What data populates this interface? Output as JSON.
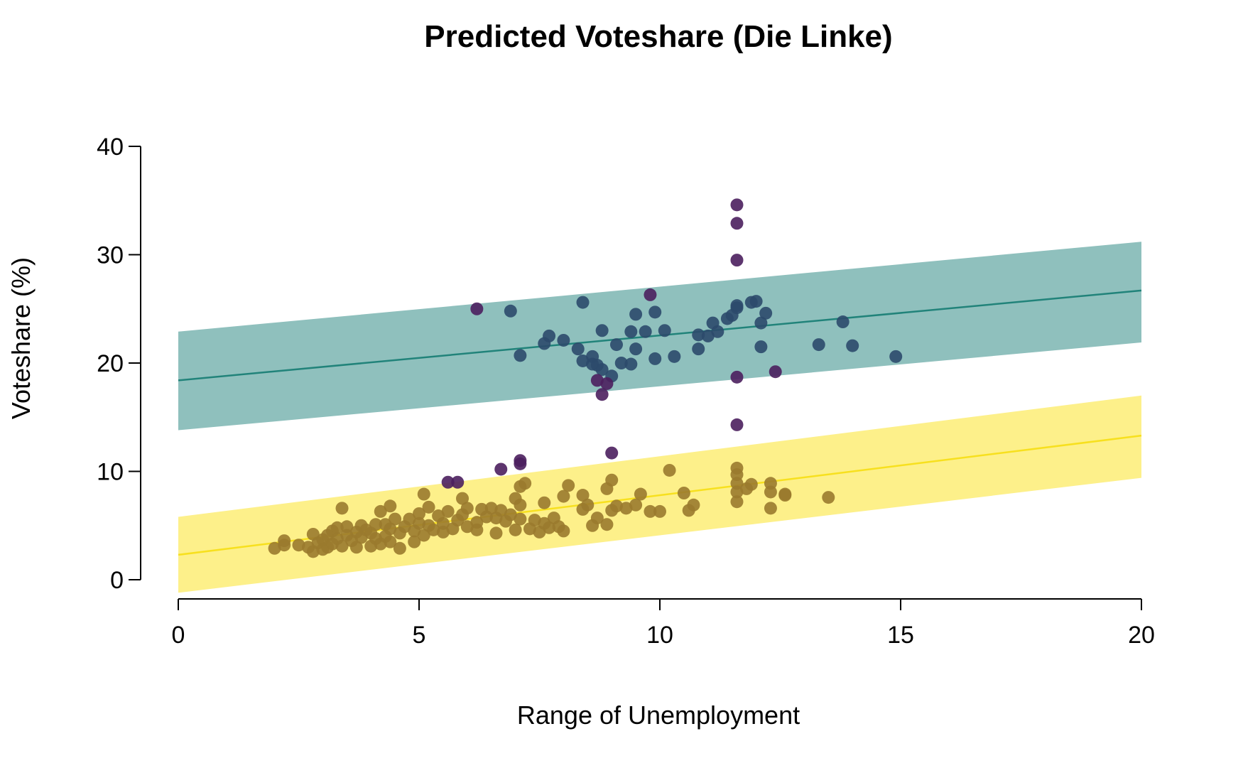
{
  "chart_data": {
    "type": "scatter",
    "title": "Predicted Voteshare (Die Linke)",
    "xlabel": "Range of Unemployment",
    "ylabel": "Voteshare (%)",
    "xlim": [
      0,
      20
    ],
    "ylim": [
      0,
      40
    ],
    "x_ticks": [
      0,
      5,
      10,
      15,
      20
    ],
    "y_ticks": [
      0,
      10,
      20,
      30,
      40
    ],
    "grid": false,
    "legend": "none",
    "colors": {
      "east_band": "#8fc0bd",
      "east_line": "#21837a",
      "west_band": "#fdf08a",
      "west_line": "#f7e01e",
      "east_points": "#2c4a6b",
      "west_points": "#9a7a2e",
      "outlier_points": "#4b1f5e"
    },
    "bands": [
      {
        "fit_x": [
          0,
          20
        ],
        "fit_y": [
          18.4,
          26.7
        ],
        "lower_y": [
          13.8,
          21.9
        ],
        "upper_y": [
          22.9,
          31.2
        ]
      },
      {
        "fit_x": [
          0,
          20
        ],
        "fit_y": [
          2.3,
          13.3
        ],
        "lower_y": [
          -1.2,
          9.4
        ],
        "upper_y": [
          5.8,
          17.0
        ]
      }
    ],
    "series": [
      {
        "points": [
          [
            8.4,
            25.6
          ],
          [
            6.9,
            24.8
          ],
          [
            7.1,
            20.7
          ],
          [
            7.6,
            21.8
          ],
          [
            7.7,
            22.5
          ],
          [
            8.0,
            22.1
          ],
          [
            8.3,
            21.3
          ],
          [
            8.4,
            20.2
          ],
          [
            8.6,
            20.6
          ],
          [
            8.6,
            19.9
          ],
          [
            8.7,
            19.8
          ],
          [
            8.8,
            23.0
          ],
          [
            8.8,
            19.4
          ],
          [
            9.0,
            18.8
          ],
          [
            9.1,
            21.7
          ],
          [
            9.2,
            20.0
          ],
          [
            9.4,
            19.9
          ],
          [
            9.4,
            22.9
          ],
          [
            9.5,
            21.3
          ],
          [
            9.5,
            24.5
          ],
          [
            9.7,
            22.9
          ],
          [
            9.9,
            24.7
          ],
          [
            9.9,
            20.4
          ],
          [
            10.1,
            23.0
          ],
          [
            10.3,
            20.6
          ],
          [
            10.8,
            22.6
          ],
          [
            10.8,
            21.3
          ],
          [
            11.0,
            22.5
          ],
          [
            11.1,
            23.7
          ],
          [
            11.2,
            22.9
          ],
          [
            11.4,
            24.1
          ],
          [
            11.5,
            24.4
          ],
          [
            11.6,
            25.1
          ],
          [
            11.6,
            25.3
          ],
          [
            11.9,
            25.6
          ],
          [
            12.0,
            25.7
          ],
          [
            12.1,
            23.7
          ],
          [
            12.1,
            21.5
          ],
          [
            12.2,
            24.6
          ],
          [
            13.3,
            21.7
          ],
          [
            13.8,
            23.8
          ],
          [
            14.0,
            21.6
          ],
          [
            14.9,
            20.6
          ]
        ]
      },
      {
        "points": [
          [
            6.2,
            25.0
          ],
          [
            9.8,
            26.3
          ],
          [
            11.6,
            34.6
          ],
          [
            11.6,
            32.9
          ],
          [
            11.6,
            29.5
          ],
          [
            11.6,
            18.7
          ],
          [
            12.4,
            19.2
          ],
          [
            11.6,
            14.3
          ],
          [
            8.8,
            17.1
          ],
          [
            8.7,
            18.4
          ],
          [
            8.9,
            18.1
          ],
          [
            9.0,
            11.7
          ],
          [
            7.1,
            11.0
          ],
          [
            7.1,
            10.7
          ],
          [
            6.7,
            10.2
          ],
          [
            5.6,
            9.0
          ],
          [
            5.8,
            9.0
          ]
        ]
      },
      {
        "points": [
          [
            2.0,
            2.9
          ],
          [
            2.2,
            3.2
          ],
          [
            2.2,
            3.6
          ],
          [
            2.5,
            3.2
          ],
          [
            2.7,
            3.0
          ],
          [
            2.8,
            2.6
          ],
          [
            2.8,
            4.2
          ],
          [
            2.9,
            3.4
          ],
          [
            3.0,
            2.8
          ],
          [
            3.0,
            3.7
          ],
          [
            3.1,
            4.1
          ],
          [
            3.1,
            3.0
          ],
          [
            3.2,
            4.5
          ],
          [
            3.2,
            3.3
          ],
          [
            3.3,
            3.8
          ],
          [
            3.3,
            4.8
          ],
          [
            3.4,
            3.1
          ],
          [
            3.4,
            6.6
          ],
          [
            3.5,
            4.1
          ],
          [
            3.5,
            4.9
          ],
          [
            3.6,
            3.6
          ],
          [
            3.7,
            3.0
          ],
          [
            3.7,
            4.4
          ],
          [
            3.8,
            5.0
          ],
          [
            3.8,
            3.9
          ],
          [
            3.9,
            4.6
          ],
          [
            4.0,
            3.1
          ],
          [
            4.0,
            4.3
          ],
          [
            4.1,
            3.8
          ],
          [
            4.1,
            5.1
          ],
          [
            4.2,
            3.3
          ],
          [
            4.2,
            6.3
          ],
          [
            4.3,
            4.0
          ],
          [
            4.3,
            5.1
          ],
          [
            4.4,
            4.7
          ],
          [
            4.4,
            3.5
          ],
          [
            4.4,
            6.8
          ],
          [
            4.5,
            5.6
          ],
          [
            4.6,
            4.3
          ],
          [
            4.6,
            2.9
          ],
          [
            4.7,
            4.9
          ],
          [
            4.8,
            5.6
          ],
          [
            4.9,
            4.5
          ],
          [
            4.9,
            3.5
          ],
          [
            5.0,
            5.2
          ],
          [
            5.0,
            6.1
          ],
          [
            5.1,
            4.1
          ],
          [
            5.1,
            7.9
          ],
          [
            5.2,
            5.0
          ],
          [
            5.2,
            6.7
          ],
          [
            5.3,
            4.6
          ],
          [
            5.4,
            5.9
          ],
          [
            5.5,
            5.2
          ],
          [
            5.5,
            4.4
          ],
          [
            5.6,
            6.3
          ],
          [
            5.7,
            4.7
          ],
          [
            5.8,
            5.5
          ],
          [
            5.9,
            6.0
          ],
          [
            5.9,
            7.5
          ],
          [
            6.0,
            4.9
          ],
          [
            6.0,
            6.6
          ],
          [
            6.2,
            5.3
          ],
          [
            6.2,
            4.6
          ],
          [
            6.3,
            6.5
          ],
          [
            6.4,
            5.8
          ],
          [
            6.5,
            6.6
          ],
          [
            6.6,
            4.3
          ],
          [
            6.6,
            5.7
          ],
          [
            6.7,
            6.4
          ],
          [
            6.8,
            5.4
          ],
          [
            6.9,
            6.0
          ],
          [
            7.0,
            7.5
          ],
          [
            7.0,
            4.6
          ],
          [
            7.1,
            8.6
          ],
          [
            7.1,
            5.6
          ],
          [
            7.1,
            6.9
          ],
          [
            7.2,
            8.9
          ],
          [
            7.3,
            4.7
          ],
          [
            7.4,
            5.5
          ],
          [
            7.5,
            4.4
          ],
          [
            7.6,
            7.1
          ],
          [
            7.6,
            5.2
          ],
          [
            7.7,
            4.8
          ],
          [
            7.8,
            5.7
          ],
          [
            7.9,
            4.9
          ],
          [
            8.0,
            4.5
          ],
          [
            8.0,
            7.7
          ],
          [
            8.1,
            8.7
          ],
          [
            8.4,
            6.5
          ],
          [
            8.4,
            7.8
          ],
          [
            8.5,
            6.9
          ],
          [
            8.6,
            5.0
          ],
          [
            8.7,
            5.7
          ],
          [
            8.9,
            8.4
          ],
          [
            8.9,
            5.1
          ],
          [
            9.0,
            9.2
          ],
          [
            9.0,
            6.4
          ],
          [
            9.1,
            6.8
          ],
          [
            9.3,
            6.6
          ],
          [
            9.5,
            6.9
          ],
          [
            9.6,
            7.9
          ],
          [
            9.8,
            6.3
          ],
          [
            10.0,
            6.3
          ],
          [
            10.2,
            10.1
          ],
          [
            10.5,
            8.0
          ],
          [
            10.6,
            6.4
          ],
          [
            10.7,
            6.9
          ],
          [
            11.6,
            10.3
          ],
          [
            11.6,
            9.7
          ],
          [
            11.6,
            8.9
          ],
          [
            11.6,
            8.1
          ],
          [
            11.6,
            7.2
          ],
          [
            11.8,
            8.4
          ],
          [
            11.9,
            8.8
          ],
          [
            12.3,
            8.9
          ],
          [
            12.3,
            8.1
          ],
          [
            12.3,
            6.6
          ],
          [
            12.6,
            7.9
          ],
          [
            12.6,
            7.8
          ],
          [
            13.5,
            7.6
          ]
        ]
      }
    ]
  }
}
